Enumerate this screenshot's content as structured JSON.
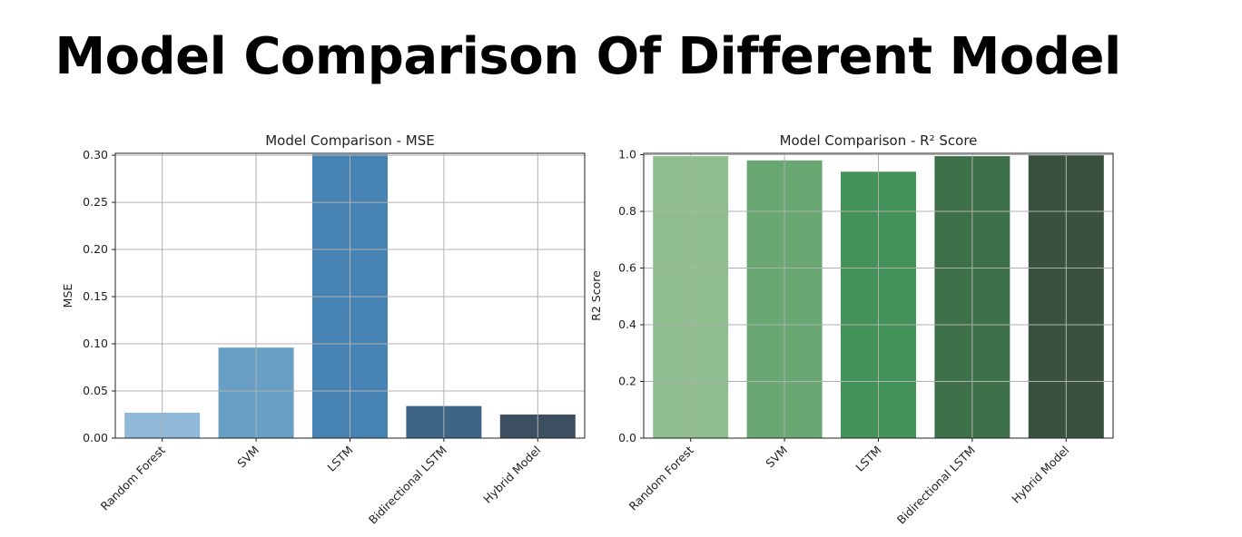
{
  "page": {
    "title": "Model Comparison Of Different Model"
  },
  "chart_data": [
    {
      "type": "bar",
      "title": "Model Comparison - MSE",
      "xlabel": "",
      "ylabel": "MSE",
      "categories": [
        "Random Forest",
        "SVM",
        "LSTM",
        "Bidirectional LSTM",
        "Hybrid Model"
      ],
      "values": [
        0.027,
        0.096,
        0.301,
        0.034,
        0.025
      ],
      "ylim": [
        0,
        0.302
      ],
      "yticks": [
        0.0,
        0.05,
        0.1,
        0.15,
        0.2,
        0.25,
        0.3
      ],
      "ytick_labels": [
        "0.00",
        "0.05",
        "0.10",
        "0.15",
        "0.20",
        "0.25",
        "0.30"
      ],
      "grid": true,
      "colors": [
        "#90b8d8",
        "#6a9fc4",
        "#4683b2",
        "#3f6586",
        "#3c4e5f"
      ]
    },
    {
      "type": "bar",
      "title": "Model Comparison - R² Score",
      "xlabel": "",
      "ylabel": "R2 Score",
      "categories": [
        "Random Forest",
        "SVM",
        "LSTM",
        "Bidirectional LSTM",
        "Hybrid Model"
      ],
      "values": [
        0.995,
        0.98,
        0.94,
        0.995,
        0.998
      ],
      "ylim": [
        0,
        1.005
      ],
      "yticks": [
        0.0,
        0.2,
        0.4,
        0.6,
        0.8,
        1.0
      ],
      "ytick_labels": [
        "0.0",
        "0.2",
        "0.4",
        "0.6",
        "0.8",
        "1.0"
      ],
      "grid": true,
      "colors": [
        "#8fbf8f",
        "#69a872",
        "#44935a",
        "#3e7049",
        "#3a5142"
      ]
    }
  ]
}
